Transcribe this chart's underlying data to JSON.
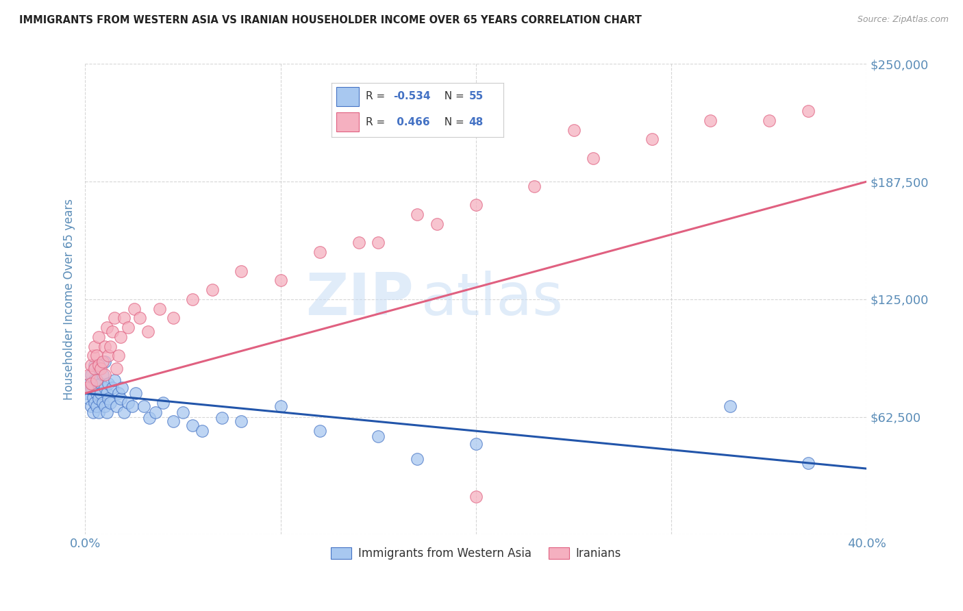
{
  "title": "IMMIGRANTS FROM WESTERN ASIA VS IRANIAN HOUSEHOLDER INCOME OVER 65 YEARS CORRELATION CHART",
  "source": "Source: ZipAtlas.com",
  "ylabel": "Householder Income Over 65 years",
  "xlim": [
    0.0,
    0.4
  ],
  "ylim": [
    0,
    250000
  ],
  "xtick_vals": [
    0.0,
    0.1,
    0.2,
    0.3,
    0.4
  ],
  "xtick_labels": [
    "0.0%",
    "",
    "",
    "",
    "40.0%"
  ],
  "ytick_vals": [
    0,
    62500,
    125000,
    187500,
    250000
  ],
  "ytick_labels": [
    "",
    "$62,500",
    "$125,000",
    "$187,500",
    "$250,000"
  ],
  "watermark_zip": "ZIP",
  "watermark_atlas": "atlas",
  "legend_label1": "Immigrants from Western Asia",
  "legend_label2": "Iranians",
  "blue_color": "#A8C8F0",
  "pink_color": "#F5B0C0",
  "blue_edge_color": "#4472C4",
  "pink_edge_color": "#E06080",
  "blue_line_color": "#2255AA",
  "pink_line_color": "#E06080",
  "title_color": "#222222",
  "source_color": "#999999",
  "axis_tick_color": "#5B8DB8",
  "grid_color": "#CCCCCC",
  "background_color": "#FFFFFF",
  "blue_scatter_x": [
    0.001,
    0.002,
    0.002,
    0.003,
    0.003,
    0.003,
    0.004,
    0.004,
    0.005,
    0.005,
    0.005,
    0.006,
    0.006,
    0.007,
    0.007,
    0.007,
    0.008,
    0.008,
    0.009,
    0.009,
    0.01,
    0.01,
    0.01,
    0.011,
    0.011,
    0.012,
    0.012,
    0.013,
    0.014,
    0.015,
    0.016,
    0.017,
    0.018,
    0.019,
    0.02,
    0.022,
    0.024,
    0.026,
    0.03,
    0.033,
    0.036,
    0.04,
    0.045,
    0.05,
    0.055,
    0.06,
    0.07,
    0.08,
    0.1,
    0.12,
    0.15,
    0.17,
    0.2,
    0.33,
    0.37
  ],
  "blue_scatter_y": [
    75000,
    72000,
    80000,
    78000,
    68000,
    85000,
    73000,
    65000,
    82000,
    70000,
    90000,
    75000,
    68000,
    88000,
    72000,
    65000,
    80000,
    75000,
    85000,
    70000,
    78000,
    92000,
    68000,
    75000,
    65000,
    80000,
    72000,
    70000,
    78000,
    82000,
    68000,
    75000,
    72000,
    78000,
    65000,
    70000,
    68000,
    75000,
    68000,
    62000,
    65000,
    70000,
    60000,
    65000,
    58000,
    55000,
    62000,
    60000,
    68000,
    55000,
    52000,
    40000,
    48000,
    68000,
    38000
  ],
  "pink_scatter_x": [
    0.001,
    0.002,
    0.003,
    0.003,
    0.004,
    0.005,
    0.005,
    0.006,
    0.006,
    0.007,
    0.007,
    0.008,
    0.009,
    0.01,
    0.01,
    0.011,
    0.012,
    0.013,
    0.014,
    0.015,
    0.016,
    0.017,
    0.018,
    0.02,
    0.022,
    0.025,
    0.028,
    0.032,
    0.038,
    0.045,
    0.055,
    0.065,
    0.08,
    0.1,
    0.12,
    0.15,
    0.18,
    0.2,
    0.23,
    0.26,
    0.29,
    0.32,
    0.35,
    0.37,
    0.2,
    0.25,
    0.17,
    0.14
  ],
  "pink_scatter_y": [
    78000,
    85000,
    90000,
    80000,
    95000,
    88000,
    100000,
    82000,
    95000,
    90000,
    105000,
    88000,
    92000,
    100000,
    85000,
    110000,
    95000,
    100000,
    108000,
    115000,
    88000,
    95000,
    105000,
    115000,
    110000,
    120000,
    115000,
    108000,
    120000,
    115000,
    125000,
    130000,
    140000,
    135000,
    150000,
    155000,
    165000,
    20000,
    185000,
    200000,
    210000,
    220000,
    220000,
    225000,
    175000,
    215000,
    170000,
    155000
  ]
}
